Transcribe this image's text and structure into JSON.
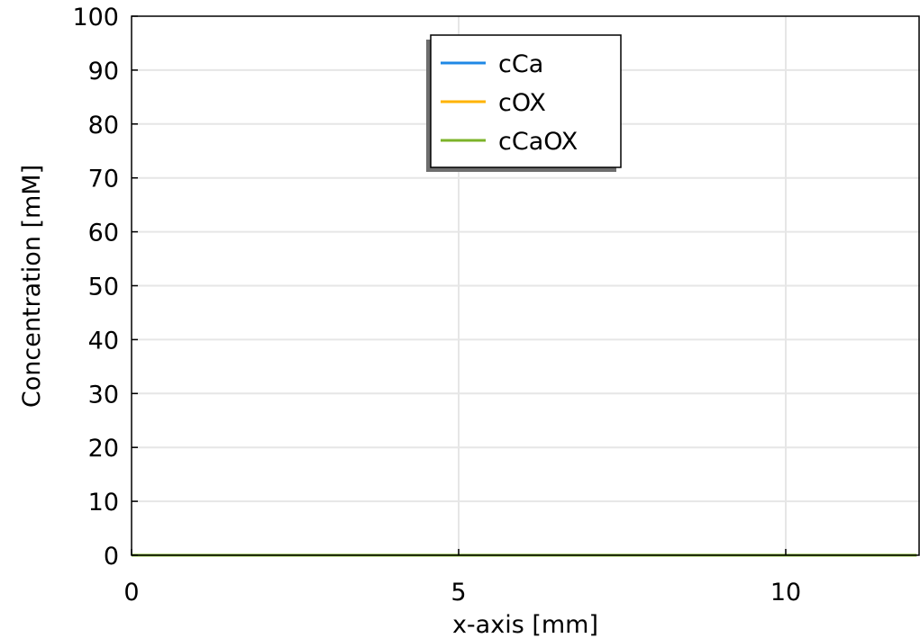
{
  "chart_data": {
    "type": "line",
    "title": "",
    "xlabel": "x-axis  [mm]",
    "ylabel": "Concentration [mM]",
    "xlim": [
      0,
      12
    ],
    "ylim": [
      0,
      100
    ],
    "x_ticks": [
      "0",
      "5",
      "10"
    ],
    "y_ticks": [
      "0",
      "10",
      "20",
      "30",
      "40",
      "50",
      "60",
      "70",
      "80",
      "90",
      "100"
    ],
    "grid": true,
    "legend_position": "top-center",
    "series": [
      {
        "name": "cCa",
        "color": "#1f88e5",
        "x": [
          0,
          12
        ],
        "y": [
          0,
          0
        ]
      },
      {
        "name": "cOX",
        "color": "#ffb300",
        "x": [
          0,
          12
        ],
        "y": [
          0,
          0
        ]
      },
      {
        "name": "cCaOX",
        "color": "#7cb32a",
        "x": [
          0,
          12
        ],
        "y": [
          0,
          0
        ]
      }
    ]
  }
}
